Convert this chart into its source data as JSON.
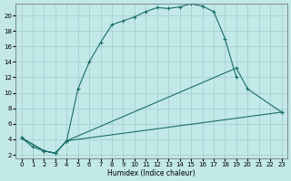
{
  "xlabel": "Humidex (Indice chaleur)",
  "ylabel": "",
  "bg_color": "#c2e8e8",
  "grid_color": "#a8d0d0",
  "line_color": "#1a6e6a",
  "xlim": [
    -0.5,
    23.5
  ],
  "ylim": [
    1.5,
    21.5
  ],
  "xticks": [
    0,
    1,
    2,
    3,
    4,
    5,
    6,
    7,
    8,
    9,
    10,
    11,
    12,
    13,
    14,
    15,
    16,
    17,
    18,
    19,
    20,
    21,
    22,
    23
  ],
  "yticks": [
    2,
    4,
    6,
    8,
    10,
    12,
    14,
    16,
    18,
    20
  ],
  "curve1_x": [
    0,
    1,
    2,
    3,
    4,
    5,
    6,
    7,
    8,
    9,
    10,
    11,
    12,
    13,
    14,
    15,
    16,
    17,
    18,
    19
  ],
  "curve1_y": [
    4.2,
    3.0,
    2.5,
    2.2,
    3.8,
    10.5,
    14.0,
    16.5,
    18.8,
    19.3,
    19.8,
    20.5,
    21.0,
    20.9,
    21.1,
    21.5,
    21.2,
    20.5,
    17.0,
    12.0
  ],
  "curve2_x": [
    0,
    2,
    3,
    4,
    19,
    20,
    23
  ],
  "curve2_y": [
    4.2,
    2.5,
    2.2,
    3.8,
    13.2,
    10.5,
    7.5
  ],
  "curve3_x": [
    0,
    2,
    3,
    4,
    23
  ],
  "curve3_y": [
    4.2,
    2.5,
    2.2,
    3.8,
    7.5
  ]
}
